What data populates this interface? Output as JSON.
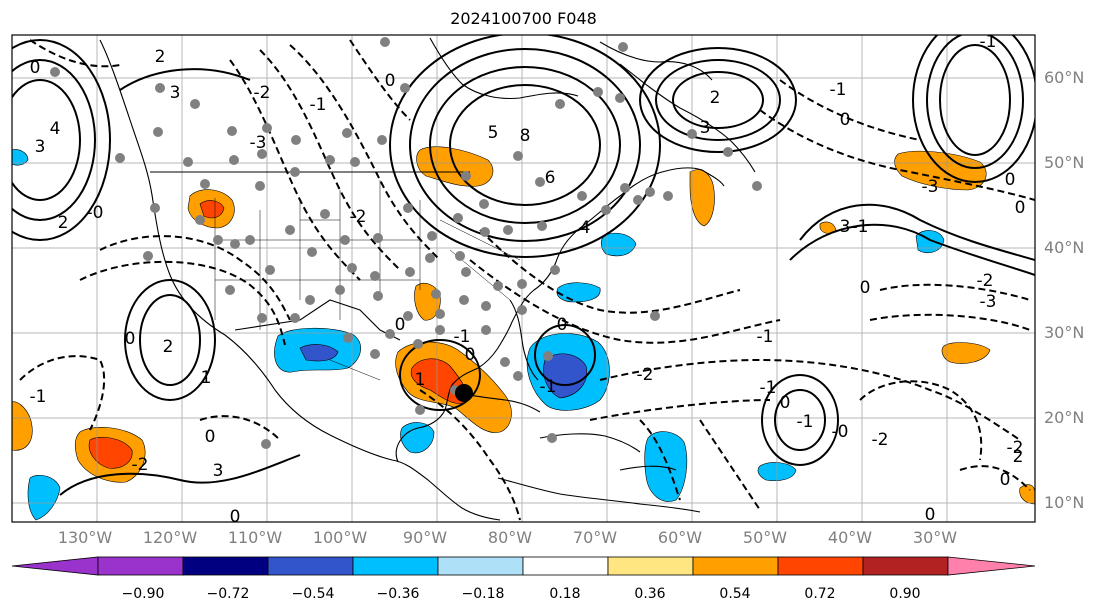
{
  "title": "2024100700 F048",
  "lon_labels": [
    "130°W",
    "120°W",
    "110°W",
    "100°W",
    "90°W",
    "80°W",
    "70°W",
    "60°W",
    "50°W",
    "40°W",
    "30°W"
  ],
  "lat_labels": [
    "60°N",
    "50°N",
    "40°N",
    "30°N",
    "20°N",
    "10°N"
  ],
  "contour_labels": [
    "0",
    "2",
    "3",
    "4",
    "3",
    "-2",
    "-3",
    "-1",
    "0",
    "-0",
    "2",
    "5",
    "8",
    "6",
    "4",
    "3",
    "2",
    "-1",
    "0",
    "-3",
    "0",
    "-1",
    "3",
    "-1",
    "0",
    "0",
    "-2",
    "2",
    "-3",
    "-2",
    "0",
    "-1",
    "1",
    "0",
    "0",
    "-1",
    "-2",
    "0",
    "-1",
    "1",
    "0",
    "-1",
    "-0",
    "-1",
    "-2",
    "0",
    "-2",
    "0",
    "-2",
    "3",
    "2",
    "0",
    "0",
    "-1"
  ],
  "colorbar": {
    "ticks": [
      "−0.90",
      "−0.72",
      "−0.54",
      "−0.36",
      "−0.18",
      "0.18",
      "0.36",
      "0.54",
      "0.72",
      "0.90"
    ],
    "colors": [
      "#9933cc",
      "#000080",
      "#3355cc",
      "#00bfff",
      "#aee1f8",
      "#ffffff",
      "#ffe680",
      "#ff9f00",
      "#ff4500",
      "#b22222",
      "#ff80aa"
    ]
  },
  "marker": {
    "name": "storm-center",
    "lon": -86.2,
    "lat": 23.3
  }
}
